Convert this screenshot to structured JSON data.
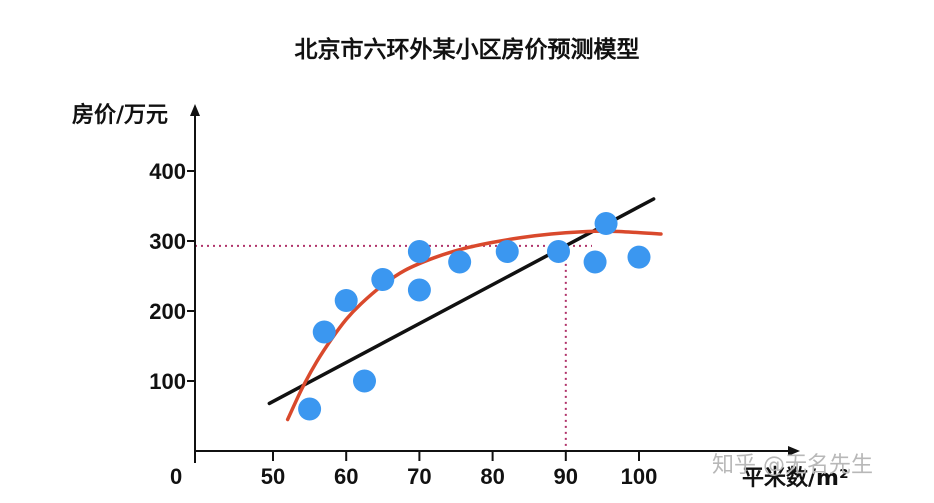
{
  "chart_data": {
    "type": "scatter",
    "title": "北京市六环外某小区房价预测模型",
    "xlabel": "平米数/m²",
    "ylabel": "房价/万元",
    "xlim": [
      48,
      110
    ],
    "ylim": [
      0,
      440
    ],
    "x_ticks": [
      50,
      60,
      70,
      80,
      90,
      100
    ],
    "y_ticks": [
      100,
      200,
      300,
      400
    ],
    "origin_label": "0",
    "grid": false,
    "points": [
      {
        "x": 55,
        "y": 60
      },
      {
        "x": 57,
        "y": 170
      },
      {
        "x": 60,
        "y": 215
      },
      {
        "x": 62.5,
        "y": 100
      },
      {
        "x": 65,
        "y": 245
      },
      {
        "x": 70,
        "y": 285
      },
      {
        "x": 70,
        "y": 230
      },
      {
        "x": 75.5,
        "y": 270
      },
      {
        "x": 82,
        "y": 285
      },
      {
        "x": 89,
        "y": 285
      },
      {
        "x": 94,
        "y": 270
      },
      {
        "x": 95.5,
        "y": 325
      },
      {
        "x": 100,
        "y": 277
      }
    ],
    "linear_fit": {
      "x": [
        49.5,
        102
      ],
      "y": [
        68,
        360
      ]
    },
    "curve_fit": {
      "x": [
        52,
        54,
        56,
        58,
        60,
        62,
        65,
        68,
        72,
        76,
        80,
        84,
        88,
        92,
        96,
        100,
        103
      ],
      "y": [
        45,
        90,
        128,
        160,
        188,
        210,
        237,
        258,
        276,
        289,
        298,
        305,
        310,
        313,
        314,
        312,
        310
      ]
    },
    "guide": {
      "x": 90,
      "y": 293
    },
    "colors": {
      "points": "#3b97f0",
      "linear_fit": "#111111",
      "curve_fit": "#d9492c",
      "guide": "#b0336a",
      "axis": "#111111"
    }
  },
  "watermark": "知乎 @无名先生"
}
